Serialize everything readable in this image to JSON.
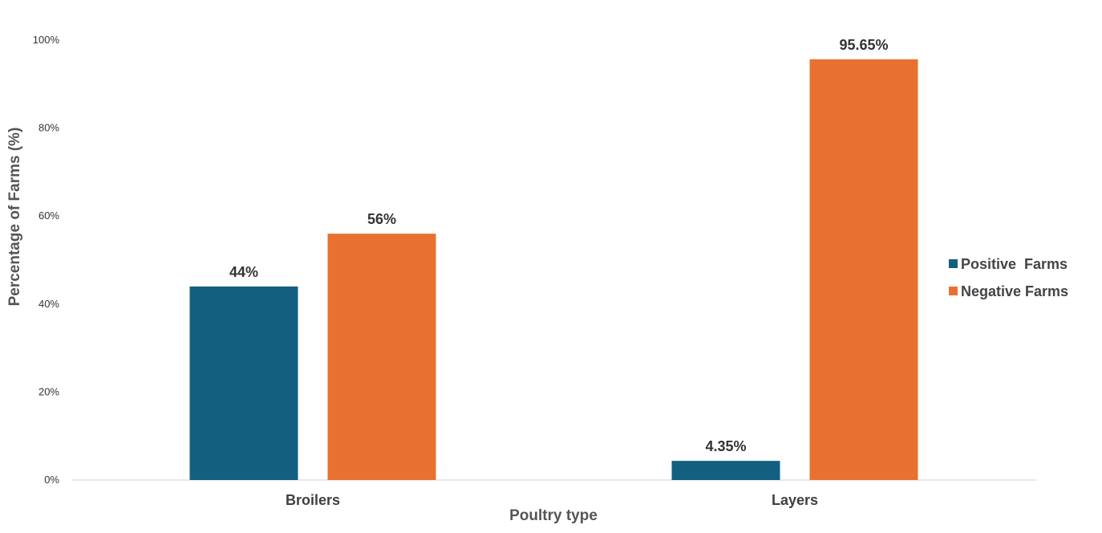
{
  "chart_data": {
    "type": "bar",
    "title": "",
    "xlabel": "Poultry type",
    "ylabel": "Percentage of Farms (%)",
    "categories": [
      "Broilers",
      "Layers"
    ],
    "series": [
      {
        "name": "Positive  Farms",
        "values": [
          44,
          4.35
        ],
        "labels": [
          "44%",
          "4.35%"
        ],
        "color": "#135F80"
      },
      {
        "name": "Negative Farms",
        "values": [
          56,
          95.65
        ],
        "labels": [
          "56%",
          "95.65%"
        ],
        "color": "#E87131"
      }
    ],
    "ylim": [
      0,
      100
    ],
    "yticks": [
      0,
      20,
      40,
      60,
      80,
      100
    ],
    "ytick_labels": [
      "0%",
      "20%",
      "40%",
      "60%",
      "80%",
      "100%"
    ],
    "grid": false,
    "legend_position": "right"
  }
}
